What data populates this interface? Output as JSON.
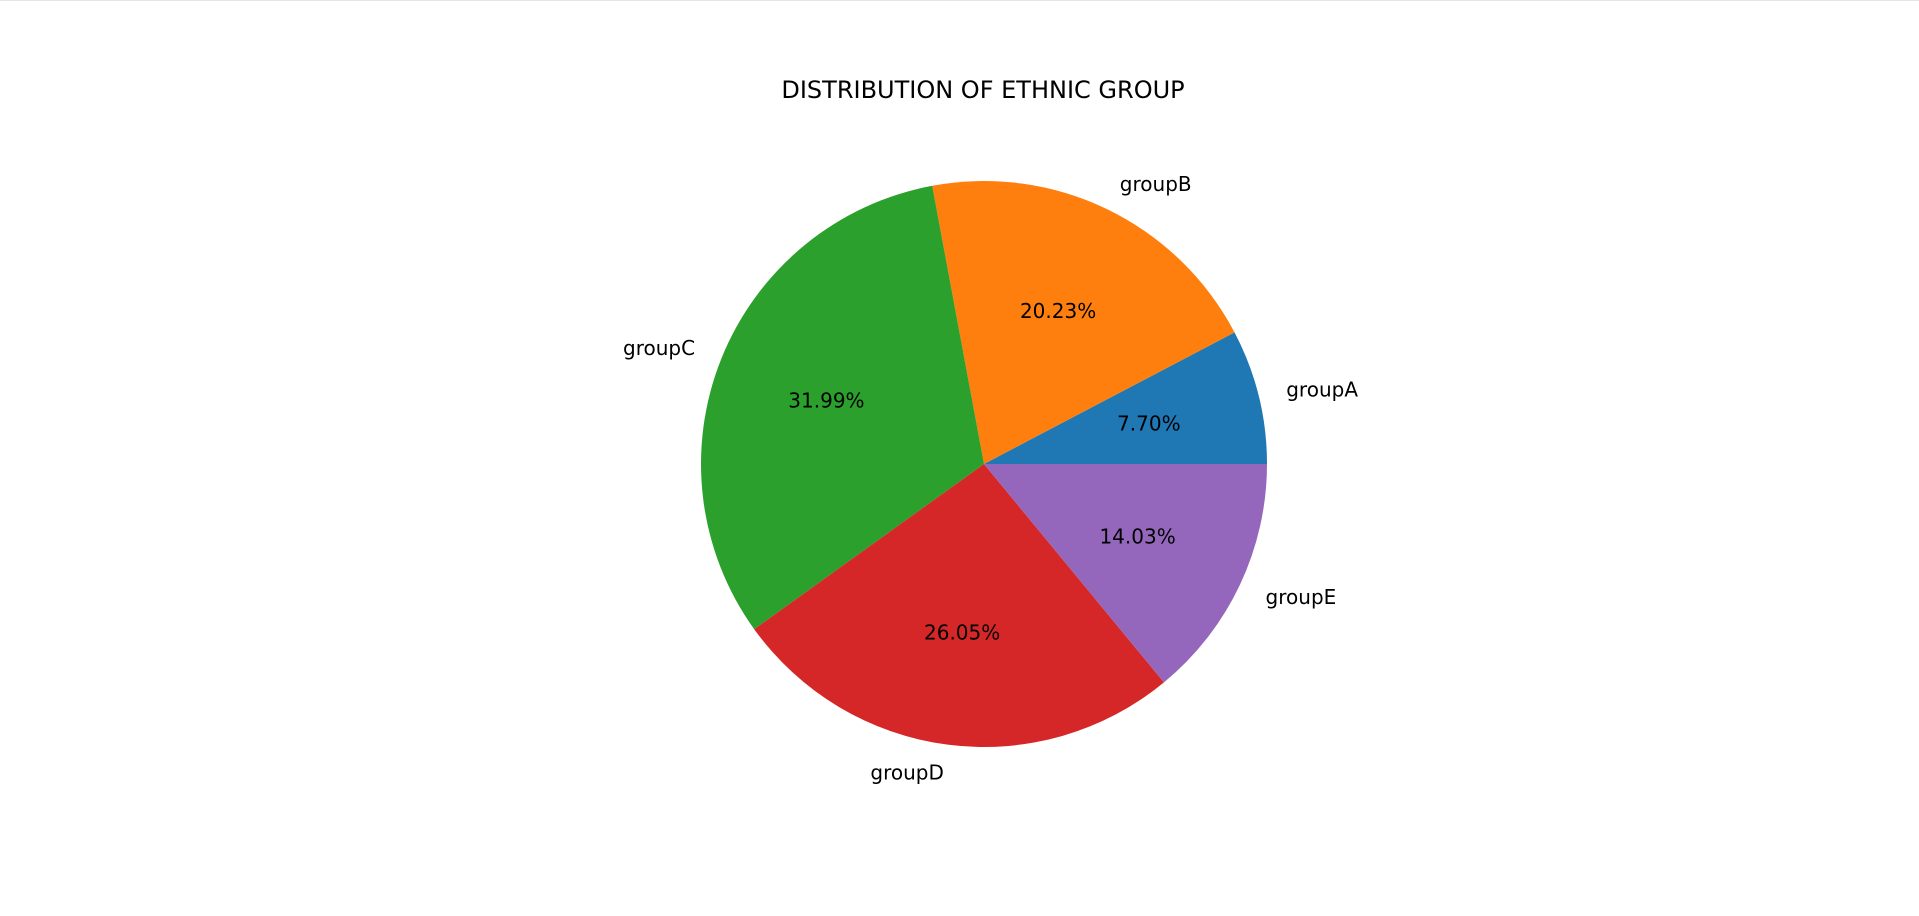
{
  "chart_data": {
    "type": "pie",
    "title": "DISTRIBUTION OF ETHNIC GROUP",
    "categories": [
      "groupA",
      "groupB",
      "groupC",
      "groupD",
      "groupE"
    ],
    "values": [
      7.7,
      20.23,
      31.99,
      26.05,
      14.03
    ],
    "value_labels": [
      "7.70%",
      "20.23%",
      "31.99%",
      "26.05%",
      "14.03%"
    ],
    "colors": [
      "#1f77b4",
      "#ff7f0e",
      "#2ca02c",
      "#d62728",
      "#9467bd"
    ],
    "start_angle_deg": 0,
    "direction": "counterclockwise",
    "legend": "none"
  }
}
